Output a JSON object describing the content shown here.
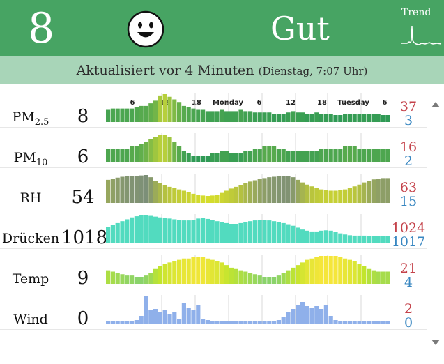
{
  "header": {
    "aqi": "8",
    "status": "Gut",
    "trend_label": "Trend",
    "bg_color": "#47a463"
  },
  "updated": {
    "text": "Aktualisiert vor 4 Minuten",
    "paren_open": "(",
    "detail": "Dienstag, 7:07 Uhr",
    "paren_close": ")"
  },
  "time_ticks": [
    "6",
    "12",
    "18",
    "Monday",
    "6",
    "12",
    "18",
    "Tuesday",
    "6"
  ],
  "rows": [
    {
      "label_main": "PM",
      "label_sub": "2.5",
      "value": "8",
      "max": "37",
      "min": "3",
      "chart_type": "bar",
      "color_mode": "pm",
      "values": [
        12,
        13,
        13,
        13,
        13,
        13,
        14,
        15,
        15,
        17,
        19,
        23,
        24,
        22,
        20,
        18,
        15,
        14,
        13,
        12,
        12,
        11,
        11,
        11,
        12,
        11,
        11,
        11,
        12,
        11,
        11,
        10,
        10,
        10,
        10,
        9,
        9,
        9,
        10,
        11,
        10,
        10,
        9,
        9,
        10,
        9,
        9,
        9,
        8,
        8,
        9,
        9,
        9,
        9,
        9,
        9,
        9,
        9,
        8,
        8
      ]
    },
    {
      "label_main": "PM",
      "label_sub": "10",
      "value": "6",
      "max": "16",
      "min": "2",
      "chart_type": "bar",
      "color_mode": "pm",
      "values": [
        9,
        9,
        9,
        9,
        9,
        10,
        10,
        11,
        12,
        13,
        14,
        15,
        15,
        14,
        12,
        10,
        8,
        7,
        6,
        6,
        6,
        6,
        7,
        7,
        8,
        8,
        7,
        7,
        7,
        8,
        8,
        9,
        9,
        10,
        10,
        10,
        9,
        9,
        8,
        8,
        8,
        8,
        8,
        8,
        8,
        9,
        9,
        9,
        9,
        9,
        10,
        10,
        10,
        9,
        9,
        9,
        9,
        9,
        9,
        9
      ]
    },
    {
      "label_main": "RH",
      "label_sub": "",
      "value": "54",
      "max": "63",
      "min": "15",
      "chart_type": "bar",
      "color_mode": "rh",
      "values": [
        52,
        55,
        57,
        59,
        60,
        61,
        61,
        62,
        63,
        58,
        50,
        44,
        40,
        36,
        33,
        30,
        27,
        24,
        20,
        18,
        16,
        15,
        16,
        18,
        22,
        27,
        32,
        36,
        40,
        44,
        48,
        51,
        54,
        56,
        58,
        59,
        60,
        61,
        61,
        58,
        52,
        46,
        41,
        37,
        33,
        30,
        28,
        27,
        27,
        28,
        30,
        33,
        37,
        41,
        46,
        50,
        53,
        55,
        56,
        56
      ]
    },
    {
      "label_main": "Drücken",
      "label_sub": "",
      "value": "1018",
      "max": "1024",
      "min": "1017",
      "chart_type": "bar",
      "color_mode": "flat",
      "color": "#52dbbf",
      "values": [
        1020.5,
        1021,
        1021.5,
        1022,
        1022.5,
        1023,
        1023.3,
        1023.5,
        1023.5,
        1023.4,
        1023.2,
        1023,
        1022.8,
        1022.7,
        1022.5,
        1022.3,
        1022.2,
        1022.2,
        1022.4,
        1022.7,
        1022.8,
        1022.6,
        1022.3,
        1022,
        1021.7,
        1021.5,
        1021.3,
        1021.3,
        1021.5,
        1021.8,
        1022,
        1022.2,
        1022.3,
        1022.3,
        1022.2,
        1022,
        1021.8,
        1021.5,
        1021.2,
        1020.8,
        1020.3,
        1019.8,
        1019.5,
        1019.3,
        1019.3,
        1019.5,
        1019.6,
        1019.5,
        1019.2,
        1018.8,
        1018.5,
        1018.3,
        1018.2,
        1018.2,
        1018.2,
        1018.1,
        1018.1,
        1018,
        1018,
        1018
      ]
    },
    {
      "label_main": "Temp",
      "label_sub": "",
      "value": "9",
      "max": "21",
      "min": "4",
      "chart_type": "bar",
      "color_mode": "temp",
      "values": [
        10,
        9,
        8,
        7,
        6,
        6,
        5,
        5,
        6,
        8,
        11,
        13,
        15,
        16,
        17,
        18,
        19,
        19,
        20,
        20,
        20,
        19,
        18,
        17,
        16,
        14,
        12,
        11,
        10,
        9,
        8,
        7,
        6,
        5,
        5,
        5,
        6,
        8,
        10,
        12,
        14,
        16,
        18,
        19,
        20,
        21,
        21,
        21,
        21,
        20,
        19,
        18,
        17,
        15,
        13,
        11,
        10,
        9,
        9,
        9
      ]
    },
    {
      "label_main": "Wind",
      "label_sub": "",
      "value": "0",
      "max": "2",
      "min": "0",
      "chart_type": "bar",
      "color_mode": "flat",
      "color": "#8fb0ea",
      "values": [
        0.2,
        0.2,
        0.2,
        0.2,
        0.2,
        0.2,
        0.3,
        0.6,
        2.0,
        1.0,
        1.1,
        0.9,
        1.0,
        0.7,
        0.9,
        0.4,
        1.5,
        1.2,
        1.0,
        1.4,
        0.4,
        0.3,
        0.2,
        0.2,
        0.2,
        0.2,
        0.2,
        0.2,
        0.2,
        0.2,
        0.2,
        0.2,
        0.2,
        0.2,
        0.2,
        0.2,
        0.3,
        0.5,
        0.9,
        1.1,
        1.4,
        1.6,
        1.3,
        1.2,
        1.3,
        1.1,
        1.4,
        0.6,
        0.3,
        0.2,
        0.2,
        0.2,
        0.2,
        0.2,
        0.2,
        0.2,
        0.2,
        0.2,
        0.2,
        0.2
      ]
    }
  ]
}
